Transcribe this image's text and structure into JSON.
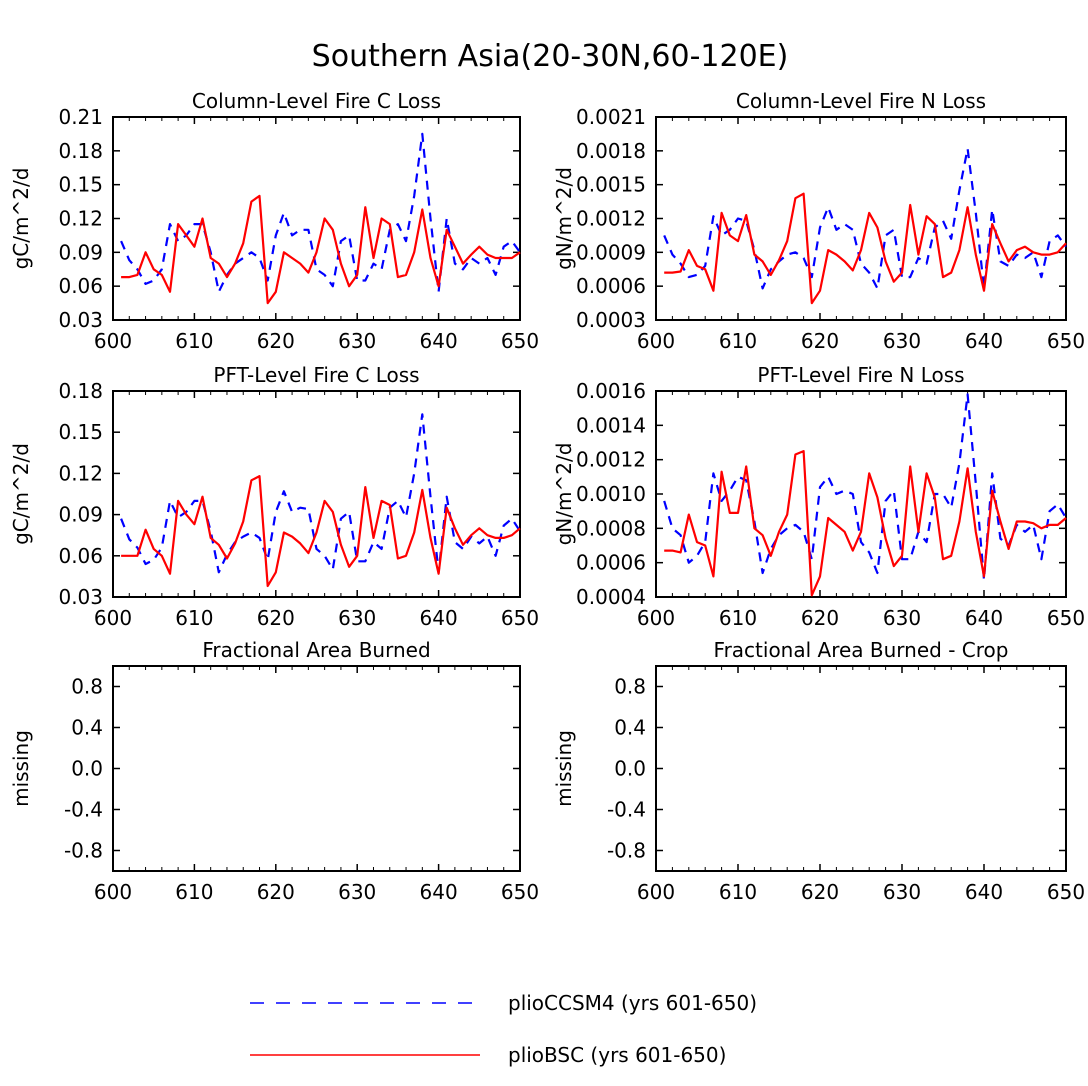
{
  "title": "Southern Asia(20-30N,60-120E)",
  "colors": {
    "plioCCSM4": "#0000ff",
    "plioBSC": "#ff0000"
  },
  "legend": [
    {
      "label": "plioCCSM4 (yrs 601-650)",
      "style": "dashed",
      "color": "#0000ff"
    },
    {
      "label": "plioBSC (yrs 601-650)",
      "style": "solid",
      "color": "#ff0000"
    }
  ],
  "chart_data": [
    {
      "type": "line",
      "title": "Column-Level Fire C Loss",
      "ylabel": "gC/m^2/d",
      "xlim": [
        600,
        650
      ],
      "ylim": [
        0.03,
        0.21
      ],
      "xticks": [
        "600",
        "610",
        "620",
        "630",
        "640",
        "650"
      ],
      "yticks": [
        "0.03",
        "0.06",
        "0.09",
        "0.12",
        "0.15",
        "0.18",
        "0.21"
      ],
      "x": [
        601,
        602,
        603,
        604,
        605,
        606,
        607,
        608,
        609,
        610,
        611,
        612,
        613,
        614,
        615,
        616,
        617,
        618,
        619,
        620,
        621,
        622,
        623,
        624,
        625,
        626,
        627,
        628,
        629,
        630,
        631,
        632,
        633,
        634,
        635,
        636,
        637,
        638,
        639,
        640,
        641,
        642,
        643,
        644,
        645,
        646,
        647,
        648,
        649,
        650
      ],
      "series": [
        {
          "name": "plioCCSM4 (yrs 601-650)",
          "values": [
            0.1,
            0.083,
            0.075,
            0.062,
            0.065,
            0.075,
            0.115,
            0.1,
            0.105,
            0.115,
            0.115,
            0.09,
            0.055,
            0.07,
            0.08,
            0.085,
            0.09,
            0.085,
            0.065,
            0.105,
            0.125,
            0.105,
            0.11,
            0.11,
            0.075,
            0.07,
            0.06,
            0.1,
            0.105,
            0.065,
            0.065,
            0.08,
            0.075,
            0.11,
            0.115,
            0.1,
            0.14,
            0.195,
            0.12,
            0.055,
            0.12,
            0.08,
            0.075,
            0.085,
            0.08,
            0.085,
            0.07,
            0.095,
            0.1,
            0.09
          ]
        },
        {
          "name": "plioBSC (yrs 601-650)",
          "values": [
            0.068,
            0.068,
            0.07,
            0.09,
            0.075,
            0.07,
            0.055,
            0.115,
            0.105,
            0.095,
            0.12,
            0.085,
            0.08,
            0.068,
            0.08,
            0.098,
            0.135,
            0.14,
            0.045,
            0.055,
            0.09,
            0.085,
            0.08,
            0.072,
            0.09,
            0.12,
            0.11,
            0.08,
            0.06,
            0.07,
            0.13,
            0.085,
            0.12,
            0.115,
            0.068,
            0.07,
            0.09,
            0.128,
            0.085,
            0.06,
            0.11,
            0.095,
            0.08,
            0.088,
            0.095,
            0.088,
            0.085,
            0.085,
            0.085,
            0.09
          ]
        }
      ]
    },
    {
      "type": "line",
      "title": "Column-Level Fire N Loss",
      "ylabel": "gN/m^2/d",
      "xlim": [
        600,
        650
      ],
      "ylim": [
        0.0003,
        0.0021
      ],
      "xticks": [
        "600",
        "610",
        "620",
        "630",
        "640",
        "650"
      ],
      "yticks": [
        "0.0003",
        "0.0006",
        "0.0009",
        "0.0012",
        "0.0015",
        "0.0018",
        "0.0021"
      ],
      "x": [
        601,
        602,
        603,
        604,
        605,
        606,
        607,
        608,
        609,
        610,
        611,
        612,
        613,
        614,
        615,
        616,
        617,
        618,
        619,
        620,
        621,
        622,
        623,
        624,
        625,
        626,
        627,
        628,
        629,
        630,
        631,
        632,
        633,
        634,
        635,
        636,
        637,
        638,
        639,
        640,
        641,
        642,
        643,
        644,
        645,
        646,
        647,
        648,
        649,
        650
      ],
      "series": [
        {
          "name": "plioCCSM4 (yrs 601-650)",
          "values": [
            0.00105,
            0.00088,
            0.0008,
            0.00068,
            0.0007,
            0.00078,
            0.00122,
            0.00105,
            0.0011,
            0.0012,
            0.00118,
            0.00092,
            0.00058,
            0.00075,
            0.00082,
            0.00088,
            0.0009,
            0.00085,
            0.00068,
            0.00112,
            0.0013,
            0.0011,
            0.00115,
            0.0011,
            0.0008,
            0.00072,
            0.00058,
            0.00105,
            0.0011,
            0.00068,
            0.00068,
            0.00085,
            0.0008,
            0.00112,
            0.00118,
            0.00102,
            0.00145,
            0.00182,
            0.00125,
            0.00058,
            0.00128,
            0.00082,
            0.00078,
            0.00088,
            0.00085,
            0.0009,
            0.00068,
            0.001,
            0.00105,
            0.00095
          ]
        },
        {
          "name": "plioBSC (yrs 601-650)",
          "values": [
            0.00072,
            0.00072,
            0.00073,
            0.00092,
            0.00078,
            0.00075,
            0.00056,
            0.00125,
            0.00105,
            0.001,
            0.00123,
            0.00088,
            0.00082,
            0.0007,
            0.00083,
            0.001,
            0.00138,
            0.00142,
            0.00045,
            0.00056,
            0.00092,
            0.00088,
            0.00082,
            0.00074,
            0.00092,
            0.00125,
            0.00112,
            0.00082,
            0.00064,
            0.00072,
            0.00132,
            0.00088,
            0.00122,
            0.00115,
            0.00068,
            0.00072,
            0.00092,
            0.0013,
            0.00088,
            0.00056,
            0.00115,
            0.00098,
            0.00082,
            0.00092,
            0.00095,
            0.0009,
            0.00088,
            0.00088,
            0.0009,
            0.00098
          ]
        }
      ]
    },
    {
      "type": "line",
      "title": "PFT-Level Fire C Loss",
      "ylabel": "gC/m^2/d",
      "xlim": [
        600,
        650
      ],
      "ylim": [
        0.03,
        0.18
      ],
      "xticks": [
        "600",
        "610",
        "620",
        "630",
        "640",
        "650"
      ],
      "yticks": [
        "0.03",
        "0.06",
        "0.09",
        "0.12",
        "0.15",
        "0.18"
      ],
      "x": [
        601,
        602,
        603,
        604,
        605,
        606,
        607,
        608,
        609,
        610,
        611,
        612,
        613,
        614,
        615,
        616,
        617,
        618,
        619,
        620,
        621,
        622,
        623,
        624,
        625,
        626,
        627,
        628,
        629,
        630,
        631,
        632,
        633,
        634,
        635,
        636,
        637,
        638,
        639,
        640,
        641,
        642,
        643,
        644,
        645,
        646,
        647,
        648,
        649,
        650
      ],
      "series": [
        {
          "name": "plioCCSM4 (yrs 601-650)",
          "values": [
            0.087,
            0.072,
            0.066,
            0.054,
            0.057,
            0.066,
            0.1,
            0.088,
            0.092,
            0.1,
            0.1,
            0.078,
            0.048,
            0.061,
            0.07,
            0.074,
            0.077,
            0.073,
            0.057,
            0.092,
            0.107,
            0.092,
            0.095,
            0.094,
            0.065,
            0.06,
            0.05,
            0.087,
            0.092,
            0.056,
            0.056,
            0.07,
            0.065,
            0.095,
            0.1,
            0.088,
            0.12,
            0.163,
            0.103,
            0.048,
            0.103,
            0.07,
            0.065,
            0.074,
            0.069,
            0.074,
            0.06,
            0.082,
            0.087,
            0.078
          ]
        },
        {
          "name": "plioBSC (yrs 601-650)",
          "values": [
            0.06,
            0.06,
            0.06,
            0.079,
            0.065,
            0.06,
            0.047,
            0.1,
            0.09,
            0.083,
            0.103,
            0.073,
            0.068,
            0.058,
            0.069,
            0.085,
            0.115,
            0.118,
            0.038,
            0.048,
            0.077,
            0.074,
            0.069,
            0.062,
            0.077,
            0.1,
            0.092,
            0.068,
            0.052,
            0.06,
            0.11,
            0.073,
            0.1,
            0.097,
            0.058,
            0.06,
            0.077,
            0.108,
            0.073,
            0.047,
            0.095,
            0.08,
            0.068,
            0.075,
            0.08,
            0.075,
            0.073,
            0.073,
            0.075,
            0.08
          ]
        }
      ]
    },
    {
      "type": "line",
      "title": "PFT-Level Fire N Loss",
      "ylabel": "gN/m^2/d",
      "xlim": [
        600,
        650
      ],
      "ylim": [
        0.0004,
        0.0016
      ],
      "xticks": [
        "600",
        "610",
        "620",
        "630",
        "640",
        "650"
      ],
      "yticks": [
        "0.0004",
        "0.0006",
        "0.0008",
        "0.0010",
        "0.0012",
        "0.0014",
        "0.0016"
      ],
      "x": [
        601,
        602,
        603,
        604,
        605,
        606,
        607,
        608,
        609,
        610,
        611,
        612,
        613,
        614,
        615,
        616,
        617,
        618,
        619,
        620,
        621,
        622,
        623,
        624,
        625,
        626,
        627,
        628,
        629,
        630,
        631,
        632,
        633,
        634,
        635,
        636,
        637,
        638,
        639,
        640,
        641,
        642,
        643,
        644,
        645,
        646,
        647,
        648,
        649,
        650
      ],
      "series": [
        {
          "name": "plioCCSM4 (yrs 601-650)",
          "values": [
            0.00096,
            0.0008,
            0.00076,
            0.0006,
            0.00064,
            0.00072,
            0.00112,
            0.00096,
            0.00102,
            0.0011,
            0.00108,
            0.00084,
            0.00054,
            0.00068,
            0.00076,
            0.0008,
            0.00082,
            0.00078,
            0.00062,
            0.00104,
            0.0011,
            0.001,
            0.00102,
            0.001,
            0.00072,
            0.00066,
            0.00054,
            0.00096,
            0.00102,
            0.00062,
            0.00062,
            0.00078,
            0.00072,
            0.001,
            0.001,
            0.00092,
            0.00118,
            0.00158,
            0.00106,
            0.0005,
            0.00112,
            0.00074,
            0.0007,
            0.00082,
            0.00078,
            0.00082,
            0.00062,
            0.0009,
            0.00094,
            0.00086
          ]
        },
        {
          "name": "plioBSC (yrs 601-650)",
          "values": [
            0.00067,
            0.00067,
            0.00066,
            0.00088,
            0.00072,
            0.0007,
            0.00052,
            0.00113,
            0.00089,
            0.00089,
            0.00116,
            0.0008,
            0.00076,
            0.00064,
            0.00078,
            0.00088,
            0.00123,
            0.00125,
            0.00041,
            0.00052,
            0.00086,
            0.00082,
            0.00078,
            0.00067,
            0.00078,
            0.00112,
            0.00098,
            0.00074,
            0.00058,
            0.00064,
            0.00116,
            0.00078,
            0.00112,
            0.00098,
            0.00062,
            0.00064,
            0.00084,
            0.00115,
            0.00078,
            0.00052,
            0.00102,
            0.00084,
            0.00068,
            0.00084,
            0.00084,
            0.00083,
            0.0008,
            0.00082,
            0.00082,
            0.00086
          ]
        }
      ]
    },
    {
      "type": "line",
      "title": "Fractional Area Burned",
      "ylabel": "missing",
      "xlim": [
        600,
        650
      ],
      "ylim": [
        -1.0,
        1.0
      ],
      "xticks": [
        "600",
        "610",
        "620",
        "630",
        "640",
        "650"
      ],
      "yticks": [
        "-0.8",
        "-0.4",
        "0.0",
        "0.4",
        "0.8"
      ],
      "x": [],
      "series": []
    },
    {
      "type": "line",
      "title": "Fractional Area Burned - Crop",
      "ylabel": "missing",
      "xlim": [
        600,
        650
      ],
      "ylim": [
        -1.0,
        1.0
      ],
      "xticks": [
        "600",
        "610",
        "620",
        "630",
        "640",
        "650"
      ],
      "yticks": [
        "-0.8",
        "-0.4",
        "0.0",
        "0.4",
        "0.8"
      ],
      "x": [],
      "series": []
    }
  ]
}
